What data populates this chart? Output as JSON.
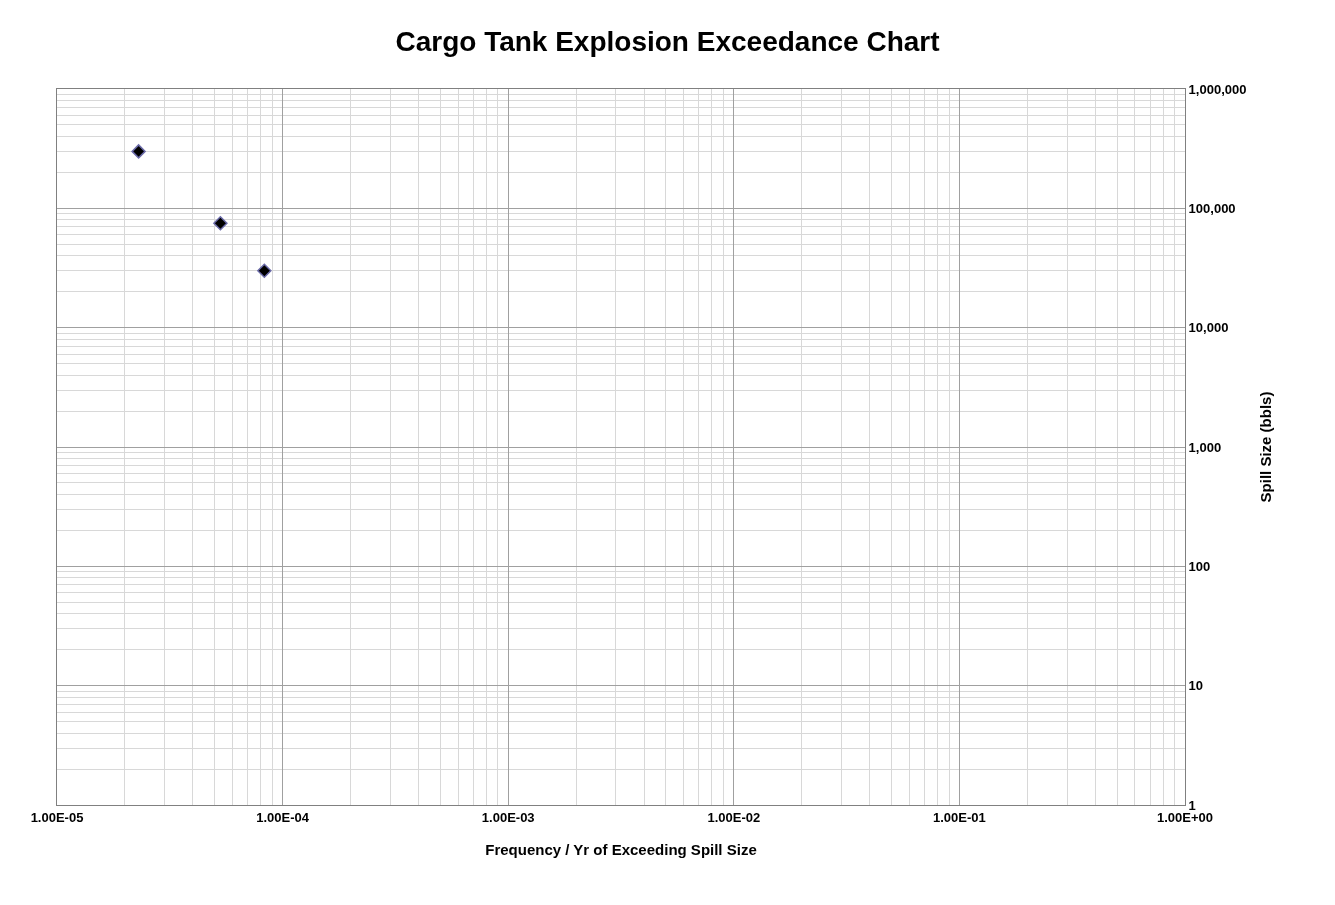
{
  "chart_data": {
    "type": "scatter",
    "title": "Cargo Tank Explosion Exceedance Chart",
    "xlabel": "Frequency / Yr of Exceeding Spill Size",
    "ylabel": "Spill Size (bbls)",
    "x": [
      2.3e-05,
      5.3e-05,
      8.3e-05
    ],
    "series": [
      {
        "color": "#000000",
        "values": [
          300000,
          75000,
          30000
        ]
      }
    ],
    "log": "xy",
    "marker": "diamond",
    "grid": true,
    "xlim": [
      1e-05,
      1
    ],
    "xticks": [
      {
        "value": 1e-05,
        "label": "1.00E-05"
      },
      {
        "value": 0.0001,
        "label": "1.00E-04"
      },
      {
        "value": 0.001,
        "label": "1.00E-03"
      },
      {
        "value": 0.01,
        "label": "1.00E-02"
      },
      {
        "value": 0.1,
        "label": "1.00E-01"
      },
      {
        "value": 1,
        "label": "1.00E+00"
      }
    ],
    "ylim": [
      1,
      1000000
    ],
    "yticks": [
      1,
      {
        "value": 10,
        "label": "10"
      },
      {
        "value": 100,
        "label": "100"
      },
      {
        "value": 1000,
        "label": "1,000"
      },
      {
        "value": 10000,
        "label": "10,000"
      },
      {
        "value": 100000,
        "label": "100,000"
      },
      {
        "value": 1000000,
        "label": "1,000,000"
      }
    ]
  }
}
